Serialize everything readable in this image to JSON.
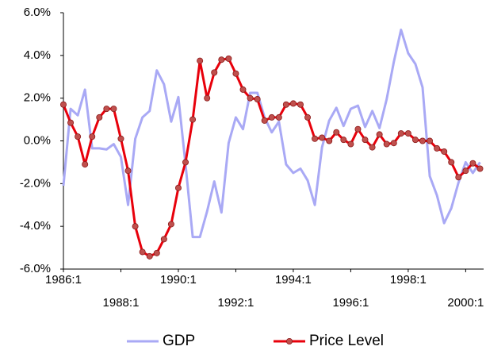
{
  "chart_data": {
    "type": "line",
    "categories": [
      "1986:1",
      null,
      null,
      null,
      null,
      null,
      null,
      null,
      "1988:1",
      null,
      null,
      null,
      null,
      null,
      null,
      null,
      "1990:1",
      null,
      null,
      null,
      null,
      null,
      null,
      null,
      "1992:1",
      null,
      null,
      null,
      null,
      null,
      null,
      null,
      "1994:1",
      null,
      null,
      null,
      null,
      null,
      null,
      null,
      "1996:1",
      null,
      null,
      null,
      null,
      null,
      null,
      null,
      "1998:1",
      null,
      null,
      null,
      null,
      null,
      null,
      null,
      "2000:1",
      null,
      null
    ],
    "series": [
      {
        "name": "GDP",
        "color": "#a9a9f5",
        "values": [
          -2.1,
          1.5,
          1.2,
          2.4,
          -0.35,
          -0.35,
          -0.4,
          -0.15,
          -0.75,
          -3.0,
          0.1,
          1.1,
          1.4,
          3.3,
          2.65,
          0.9,
          2.05,
          -1.1,
          -4.5,
          -4.5,
          -3.3,
          -1.9,
          -3.35,
          -0.1,
          1.1,
          0.55,
          2.25,
          2.25,
          1.1,
          0.4,
          0.9,
          -1.1,
          -1.5,
          -1.3,
          -1.85,
          -3.0,
          -0.3,
          0.95,
          1.55,
          0.7,
          1.5,
          1.65,
          0.65,
          1.4,
          0.6,
          1.95,
          3.7,
          5.2,
          4.1,
          3.6,
          2.5,
          -1.65,
          -2.55,
          -3.85,
          -3.15,
          -1.95,
          -1.0,
          -1.5,
          -1.0
        ]
      },
      {
        "name": "Price Level",
        "color": "#e8000b",
        "values": [
          1.7,
          0.85,
          0.2,
          -1.1,
          0.2,
          1.1,
          1.5,
          1.5,
          0.1,
          -1.4,
          -4.0,
          -5.2,
          -5.4,
          -5.25,
          -4.6,
          -3.9,
          -2.2,
          -1.0,
          1.0,
          3.75,
          2.0,
          3.2,
          3.8,
          3.85,
          3.15,
          2.4,
          2.0,
          1.95,
          0.95,
          1.1,
          1.1,
          1.7,
          1.75,
          1.7,
          1.1,
          0.1,
          0.15,
          0.0,
          0.4,
          0.05,
          -0.15,
          0.55,
          0.05,
          -0.3,
          0.3,
          -0.15,
          -0.1,
          0.35,
          0.35,
          0.05,
          0.0,
          0.0,
          -0.35,
          -0.5,
          -1.0,
          -1.7,
          -1.4,
          -1.05,
          -1.3
        ]
      }
    ],
    "ylim": [
      -6,
      6
    ],
    "yticks": [
      {
        "value": -6,
        "label": "-6.0%"
      },
      {
        "value": -4,
        "label": "-4.0%"
      },
      {
        "value": -2,
        "label": "-2.0%"
      },
      {
        "value": 0,
        "label": "0.0%"
      },
      {
        "value": 2,
        "label": "2.0%"
      },
      {
        "value": 4,
        "label": "4.0%"
      },
      {
        "value": 6,
        "label": "6.0%"
      }
    ],
    "grid": false,
    "legend": "bottom"
  }
}
